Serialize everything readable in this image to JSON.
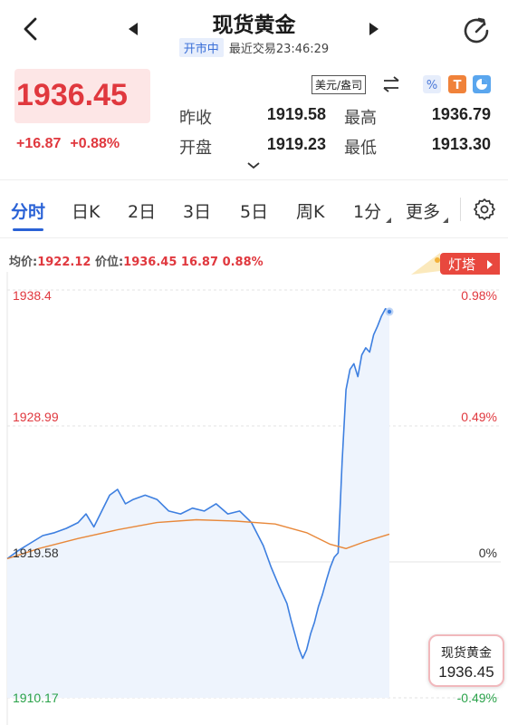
{
  "header": {
    "title": "现货黄金",
    "status_badge": "开市中",
    "last_trade": "最近交易23:46:29"
  },
  "quote": {
    "price": "1936.45",
    "change": "+16.87",
    "change_pct": "+0.88%",
    "unit": "美元/盎司",
    "stats": {
      "prev_close_label": "昨收",
      "prev_close": "1919.58",
      "high_label": "最高",
      "high": "1936.79",
      "open_label": "开盘",
      "open": "1919.23",
      "low_label": "最低",
      "low": "1913.30"
    }
  },
  "tabs": [
    "分时",
    "日K",
    "2日",
    "3日",
    "5日",
    "周K",
    "1分",
    "更多"
  ],
  "info": {
    "avg_label": "均价:",
    "avg": "1922.12",
    "price_label": "价位:",
    "price": "1936.45",
    "change": "16.87",
    "change_pct": "0.88%"
  },
  "lamp_tower_label": "灯塔",
  "chart_data": {
    "type": "line",
    "y_left_ticks": [
      "1938.4",
      "1928.99",
      "1919.58",
      "1910.17"
    ],
    "y_right_ticks": [
      "0.98%",
      "0.49%",
      "0%",
      "-0.49%"
    ],
    "ylim": [
      1910.17,
      1938.4
    ],
    "reference": 1919.58,
    "series": [
      {
        "color": "#3d7fe0",
        "points": [
          [
            0,
            1919.8
          ],
          [
            3,
            1920.4
          ],
          [
            6,
            1920.9
          ],
          [
            9,
            1921.4
          ],
          [
            12,
            1921.6
          ],
          [
            15,
            1921.9
          ],
          [
            18,
            1922.3
          ],
          [
            20,
            1922.9
          ],
          [
            22,
            1922.0
          ],
          [
            24,
            1923.1
          ],
          [
            26,
            1924.2
          ],
          [
            28,
            1924.6
          ],
          [
            30,
            1923.6
          ],
          [
            32,
            1923.9
          ],
          [
            35,
            1924.2
          ],
          [
            38,
            1923.9
          ],
          [
            41,
            1923.1
          ],
          [
            44,
            1922.9
          ],
          [
            47,
            1923.3
          ],
          [
            50,
            1923.1
          ],
          [
            53,
            1923.6
          ],
          [
            56,
            1922.9
          ],
          [
            59,
            1923.1
          ],
          [
            62,
            1922.3
          ],
          [
            65,
            1920.7
          ],
          [
            67,
            1919.2
          ],
          [
            69,
            1917.9
          ],
          [
            71,
            1916.7
          ],
          [
            72,
            1915.6
          ],
          [
            73,
            1914.6
          ],
          [
            74,
            1913.6
          ],
          [
            75,
            1912.9
          ],
          [
            76,
            1913.5
          ],
          [
            77,
            1914.6
          ],
          [
            78,
            1915.4
          ],
          [
            79,
            1916.5
          ],
          [
            80,
            1917.3
          ],
          [
            81,
            1918.3
          ],
          [
            82,
            1919.2
          ],
          [
            83,
            1919.9
          ],
          [
            84,
            1920.2
          ],
          [
            85,
            1926.5
          ],
          [
            86,
            1931.5
          ],
          [
            87,
            1932.9
          ],
          [
            88,
            1933.3
          ],
          [
            89,
            1932.4
          ],
          [
            90,
            1933.9
          ],
          [
            91,
            1934.4
          ],
          [
            92,
            1934.1
          ],
          [
            93,
            1935.3
          ],
          [
            94,
            1935.9
          ],
          [
            95,
            1936.6
          ],
          [
            96,
            1937.1
          ],
          [
            97,
            1936.9
          ]
        ]
      },
      {
        "color": "#e8883a",
        "points": [
          [
            0,
            1919.8
          ],
          [
            8,
            1920.5
          ],
          [
            18,
            1921.2
          ],
          [
            28,
            1921.8
          ],
          [
            38,
            1922.3
          ],
          [
            48,
            1922.5
          ],
          [
            58,
            1922.4
          ],
          [
            68,
            1922.2
          ],
          [
            76,
            1921.6
          ],
          [
            82,
            1920.8
          ],
          [
            86,
            1920.5
          ],
          [
            91,
            1921.0
          ],
          [
            97,
            1921.5
          ]
        ]
      }
    ]
  },
  "tag_card": {
    "name": "现货黄金",
    "value": "1936.45"
  }
}
